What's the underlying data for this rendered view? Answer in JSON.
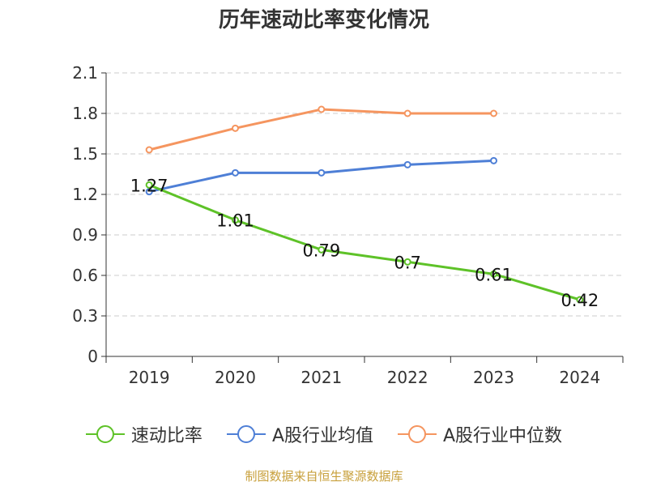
{
  "chart_data": {
    "type": "line",
    "title": "历年速动比率变化情况",
    "categories": [
      "2019",
      "2020",
      "2021",
      "2022",
      "2023",
      "2024"
    ],
    "ylim": [
      0,
      2.1
    ],
    "yticks": [
      "0",
      "0.3",
      "0.6",
      "0.9",
      "1.2",
      "1.5",
      "1.8",
      "2.1"
    ],
    "grid": true,
    "legend_position": "bottom",
    "series": [
      {
        "name": "速动比率",
        "color": "#5ec228",
        "values": [
          1.27,
          1.01,
          0.79,
          0.7,
          0.61,
          0.42
        ],
        "data_labels": [
          "1.27",
          "1.01",
          "0.79",
          "0.7",
          "0.61",
          "0.42"
        ]
      },
      {
        "name": "A股行业均值",
        "color": "#4e7fd6",
        "values": [
          1.22,
          1.36,
          1.36,
          1.42,
          1.45,
          null
        ]
      },
      {
        "name": "A股行业中位数",
        "color": "#f5955f",
        "values": [
          1.53,
          1.69,
          1.83,
          1.8,
          1.8,
          null
        ]
      }
    ]
  },
  "footer": {
    "source": "制图数据来自恒生聚源数据库"
  }
}
